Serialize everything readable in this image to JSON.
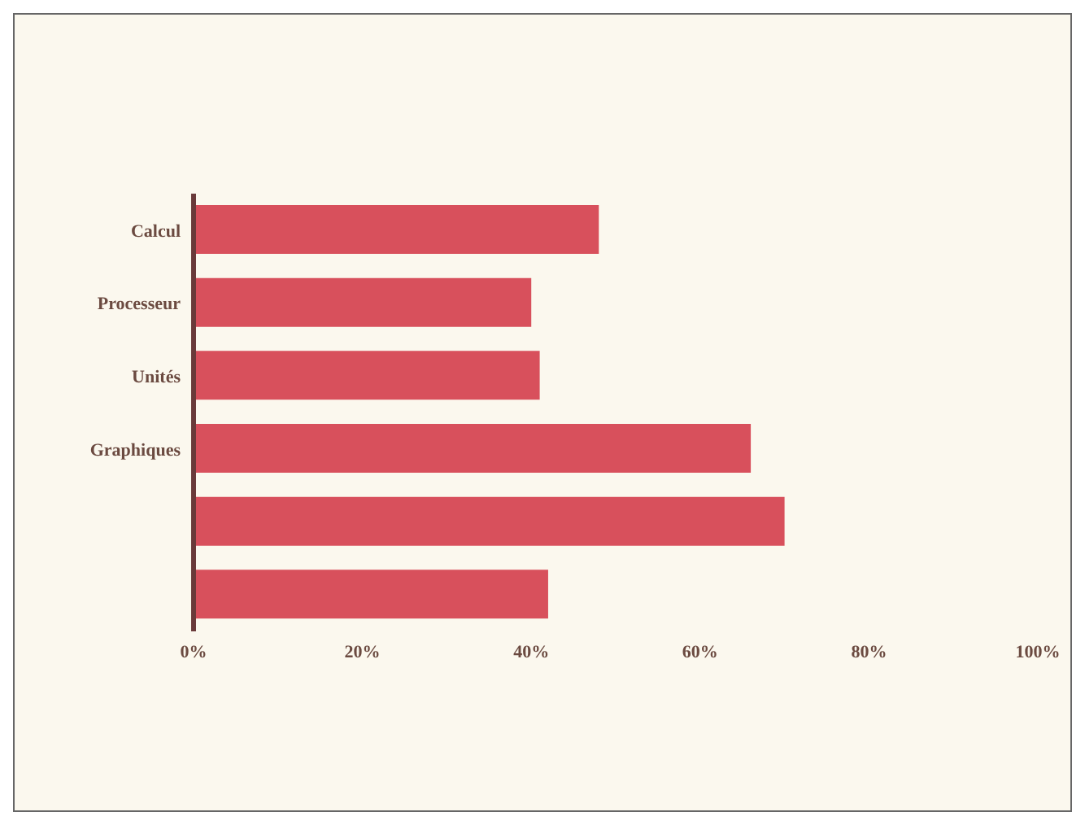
{
  "chart_data": {
    "type": "bar",
    "orientation": "horizontal",
    "categories": [
      "Calcul",
      "Processeur",
      "Unités",
      "Graphiques",
      null,
      null
    ],
    "values": [
      48,
      40,
      41,
      66,
      70,
      42
    ],
    "color": "#d8505c",
    "xlim": [
      0,
      100
    ],
    "xticks": [
      {
        "value": 0,
        "label": "0%"
      },
      {
        "value": 20,
        "label": "20%"
      },
      {
        "value": 40,
        "label": "40%"
      },
      {
        "value": 60,
        "label": "60%"
      },
      {
        "value": 80,
        "label": "80%"
      },
      {
        "value": 100,
        "label": "100%"
      }
    ],
    "grid": false
  }
}
